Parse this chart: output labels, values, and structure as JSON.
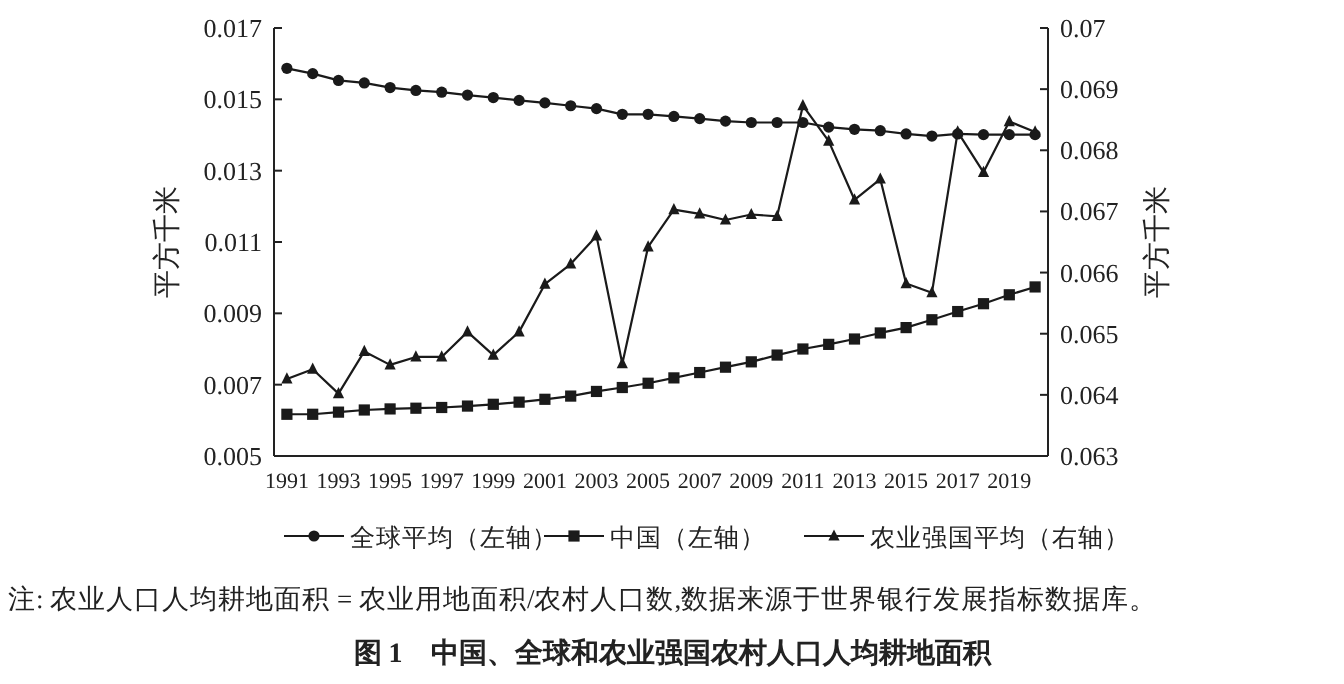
{
  "chart_data": {
    "type": "line",
    "title": "图 1　中国、全球和农业强国农村人口人均耕地面积",
    "ylabel": "平方千米",
    "y2label": "平方千米",
    "annotations": [
      "注: 农业人口人均耕地面积 = 农业用地面积/农村人口数,数据来源于世界银行发展指标数据库。"
    ],
    "x": [
      1991,
      1992,
      1993,
      1994,
      1995,
      1996,
      1997,
      1998,
      1999,
      2000,
      2001,
      2002,
      2003,
      2004,
      2005,
      2006,
      2007,
      2008,
      2009,
      2010,
      2011,
      2012,
      2013,
      2014,
      2015,
      2016,
      2017,
      2018,
      2019,
      2020
    ],
    "xlim": [
      1990.5,
      2020.5
    ],
    "xticks": [
      1991,
      1993,
      1995,
      1997,
      1999,
      2001,
      2003,
      2005,
      2007,
      2009,
      2011,
      2013,
      2015,
      2017,
      2019
    ],
    "ylim": [
      0.005,
      0.017
    ],
    "yticks": [
      0.005,
      0.007,
      0.009,
      0.011,
      0.013,
      0.015,
      0.017
    ],
    "y2lim": [
      0.063,
      0.07
    ],
    "y2ticks": [
      0.063,
      0.064,
      0.065,
      0.066,
      0.067,
      0.068,
      0.069,
      0.07
    ],
    "grid": false,
    "legend": "bottom",
    "line_style": "solid",
    "series": [
      {
        "name": "全球平均（左轴）",
        "color": "#1a1a1a",
        "marker": "circle",
        "values": [
          0.01587,
          0.01572,
          0.01553,
          0.01546,
          0.01533,
          0.01525,
          0.0152,
          0.01512,
          0.01505,
          0.01497,
          0.0149,
          0.01482,
          0.01474,
          0.01458,
          0.01458,
          0.01452,
          0.01446,
          0.01439,
          0.01435,
          0.01435,
          0.01435,
          0.01422,
          0.01416,
          0.01412,
          0.01403,
          0.01397,
          0.01403,
          0.01401,
          0.01401,
          0.01401
        ]
      },
      {
        "name": "中国（左轴）",
        "color": "#1a1a1a",
        "marker": "square",
        "values": [
          0.00617,
          0.00617,
          0.00623,
          0.00629,
          0.00632,
          0.00634,
          0.00636,
          0.0064,
          0.00645,
          0.00651,
          0.00659,
          0.00668,
          0.00681,
          0.00692,
          0.00704,
          0.00719,
          0.00734,
          0.00749,
          0.00764,
          0.00783,
          0.008,
          0.00813,
          0.00828,
          0.00845,
          0.0086,
          0.00882,
          0.00905,
          0.00927,
          0.00952,
          0.00974
        ]
      },
      {
        "name": "农业强国平均（右轴）",
        "color": "#1a1a1a",
        "marker": "triangle",
        "axis": "y2",
        "values": [
          0.06426,
          0.06442,
          0.06402,
          0.06471,
          0.06449,
          0.06462,
          0.06462,
          0.06503,
          0.06465,
          0.06503,
          0.06581,
          0.06614,
          0.0666,
          0.06451,
          0.06642,
          0.06703,
          0.06696,
          0.06686,
          0.06695,
          0.06692,
          0.06873,
          0.06815,
          0.06719,
          0.06753,
          0.06582,
          0.06567,
          0.0683,
          0.06764,
          0.06847,
          0.0683
        ]
      }
    ]
  }
}
